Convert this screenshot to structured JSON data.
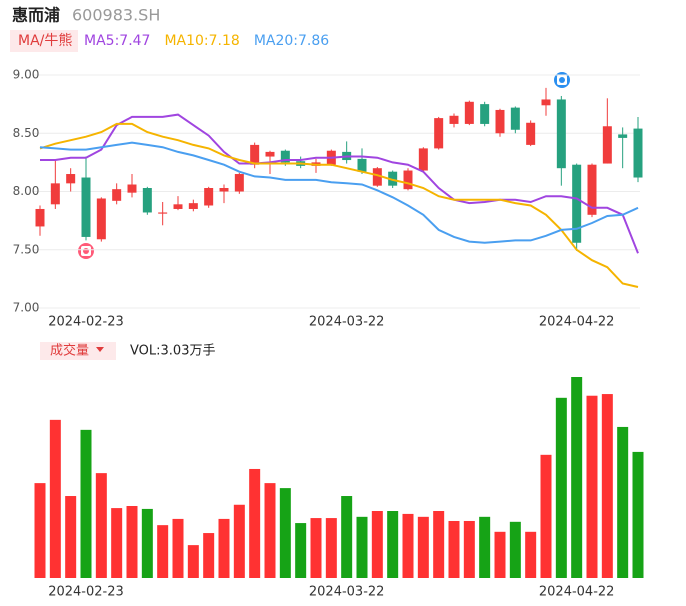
{
  "chart_data": [
    {
      "type": "candlestick",
      "title": "惠而浦",
      "subtitle": "600983.SH",
      "ma_label": "MA/牛熊",
      "categories": [
        null,
        null,
        null,
        "2024-02-23",
        null,
        null,
        null,
        null,
        null,
        null,
        null,
        null,
        null,
        null,
        null,
        null,
        null,
        null,
        null,
        null,
        "2024-03-22",
        null,
        null,
        null,
        null,
        null,
        null,
        null,
        null,
        null,
        null,
        null,
        null,
        null,
        null,
        "2024-04-22",
        null,
        null,
        null,
        null
      ],
      "open": [
        7.7,
        7.89,
        8.07,
        8.12,
        7.59,
        7.92,
        7.99,
        8.03,
        7.81,
        7.85,
        7.85,
        7.88,
        8.0,
        8.0,
        8.23,
        8.3,
        8.35,
        8.26,
        8.22,
        8.23,
        8.34,
        8.28,
        8.05,
        8.17,
        8.02,
        8.18,
        8.37,
        8.58,
        8.58,
        8.75,
        8.5,
        8.72,
        8.4,
        8.74,
        8.79,
        8.23,
        7.8,
        8.24,
        8.49,
        8.54
      ],
      "close": [
        7.85,
        8.07,
        8.15,
        7.61,
        7.94,
        8.02,
        8.06,
        7.82,
        7.82,
        7.89,
        7.9,
        8.03,
        8.03,
        8.15,
        8.4,
        8.34,
        8.25,
        8.22,
        8.25,
        8.35,
        8.27,
        8.17,
        8.2,
        8.05,
        8.18,
        8.37,
        8.63,
        8.65,
        8.77,
        8.58,
        8.7,
        8.53,
        8.59,
        8.79,
        8.2,
        7.56,
        8.23,
        8.56,
        8.46,
        8.12
      ],
      "high": [
        7.88,
        8.27,
        8.2,
        8.3,
        7.95,
        8.07,
        8.15,
        8.04,
        7.91,
        7.96,
        7.93,
        8.04,
        8.06,
        8.16,
        8.42,
        8.35,
        8.36,
        8.3,
        8.28,
        8.36,
        8.43,
        8.37,
        8.21,
        8.18,
        8.2,
        8.38,
        8.64,
        8.67,
        8.78,
        8.77,
        8.71,
        8.73,
        8.61,
        8.89,
        8.82,
        8.24,
        8.24,
        8.8,
        8.55,
        8.64
      ],
      "low": [
        7.62,
        7.85,
        8.0,
        7.58,
        7.57,
        7.89,
        7.95,
        7.8,
        7.71,
        7.84,
        7.83,
        7.86,
        7.9,
        7.98,
        8.2,
        8.15,
        8.22,
        8.2,
        8.16,
        8.22,
        8.24,
        8.15,
        8.04,
        8.03,
        8.01,
        8.17,
        8.36,
        8.55,
        8.57,
        8.56,
        8.47,
        8.5,
        8.39,
        8.65,
        8.05,
        7.49,
        7.78,
        8.24,
        8.2,
        8.08
      ],
      "up_color": "#f03c3c",
      "down_color": "#26a17f",
      "series": [
        {
          "name": "MA5",
          "legend_label": "MA5:7.47",
          "color": "#a045e0",
          "values": [
            8.27,
            8.27,
            8.29,
            8.29,
            8.36,
            8.57,
            8.64,
            8.64,
            8.64,
            8.66,
            8.57,
            8.48,
            8.34,
            8.24,
            8.24,
            8.25,
            8.27,
            8.27,
            8.29,
            8.29,
            8.3,
            8.3,
            8.29,
            8.25,
            8.23,
            8.17,
            8.03,
            7.93,
            7.9,
            7.91,
            7.93,
            7.93,
            7.91,
            7.96,
            7.96,
            7.94,
            7.86,
            7.86,
            7.8,
            7.47
          ]
        },
        {
          "name": "MA10",
          "legend_label": "MA10:7.18",
          "color": "#f5b400",
          "values": [
            8.37,
            8.41,
            8.44,
            8.47,
            8.51,
            8.58,
            8.58,
            8.51,
            8.47,
            8.44,
            8.4,
            8.37,
            8.31,
            8.27,
            8.24,
            8.24,
            8.24,
            8.24,
            8.23,
            8.23,
            8.2,
            8.17,
            8.14,
            8.1,
            8.07,
            8.03,
            7.96,
            7.93,
            7.93,
            7.93,
            7.93,
            7.9,
            7.88,
            7.8,
            7.67,
            7.5,
            7.41,
            7.35,
            7.21,
            7.18
          ]
        },
        {
          "name": "MA20",
          "legend_label": "MA20:7.86",
          "color": "#4a9ff0",
          "values": [
            8.38,
            8.37,
            8.36,
            8.36,
            8.38,
            8.4,
            8.42,
            8.4,
            8.38,
            8.34,
            8.31,
            8.27,
            8.23,
            8.17,
            8.13,
            8.12,
            8.1,
            8.1,
            8.1,
            8.08,
            8.07,
            8.06,
            8.01,
            7.95,
            7.88,
            7.8,
            7.67,
            7.61,
            7.57,
            7.56,
            7.57,
            7.58,
            7.58,
            7.62,
            7.67,
            7.68,
            7.73,
            7.79,
            7.8,
            7.86
          ]
        }
      ],
      "ylim": [
        7.0,
        9.0
      ],
      "yticks": [
        {
          "value": 7.0,
          "label": "7.00"
        },
        {
          "value": 7.5,
          "label": "7.50"
        },
        {
          "value": 8.0,
          "label": "8.00"
        },
        {
          "value": 8.5,
          "label": "8.50"
        },
        {
          "value": 9.0,
          "label": "9.00"
        }
      ],
      "grid": true
    },
    {
      "type": "bar",
      "title": "成交量",
      "vol_label": "VOL:3.03万手",
      "categories": [
        null,
        null,
        null,
        "2024-02-23",
        null,
        null,
        null,
        null,
        null,
        null,
        null,
        null,
        null,
        null,
        null,
        null,
        null,
        null,
        null,
        null,
        "2024-03-22",
        null,
        null,
        null,
        null,
        null,
        null,
        null,
        null,
        null,
        null,
        null,
        null,
        null,
        null,
        "2024-04-22",
        null,
        null,
        null,
        null
      ],
      "values": [
        2.28,
        3.8,
        1.97,
        3.56,
        2.52,
        1.68,
        1.73,
        1.66,
        1.27,
        1.42,
        0.79,
        1.08,
        1.42,
        1.76,
        2.62,
        2.28,
        2.16,
        1.32,
        1.44,
        1.44,
        1.97,
        1.47,
        1.61,
        1.61,
        1.54,
        1.47,
        1.61,
        1.37,
        1.37,
        1.47,
        1.11,
        1.35,
        1.11,
        2.96,
        4.33,
        4.83,
        4.38,
        4.42,
        3.63,
        3.03
      ],
      "up_color": "#ff3232",
      "down_color": "#16a316"
    }
  ]
}
